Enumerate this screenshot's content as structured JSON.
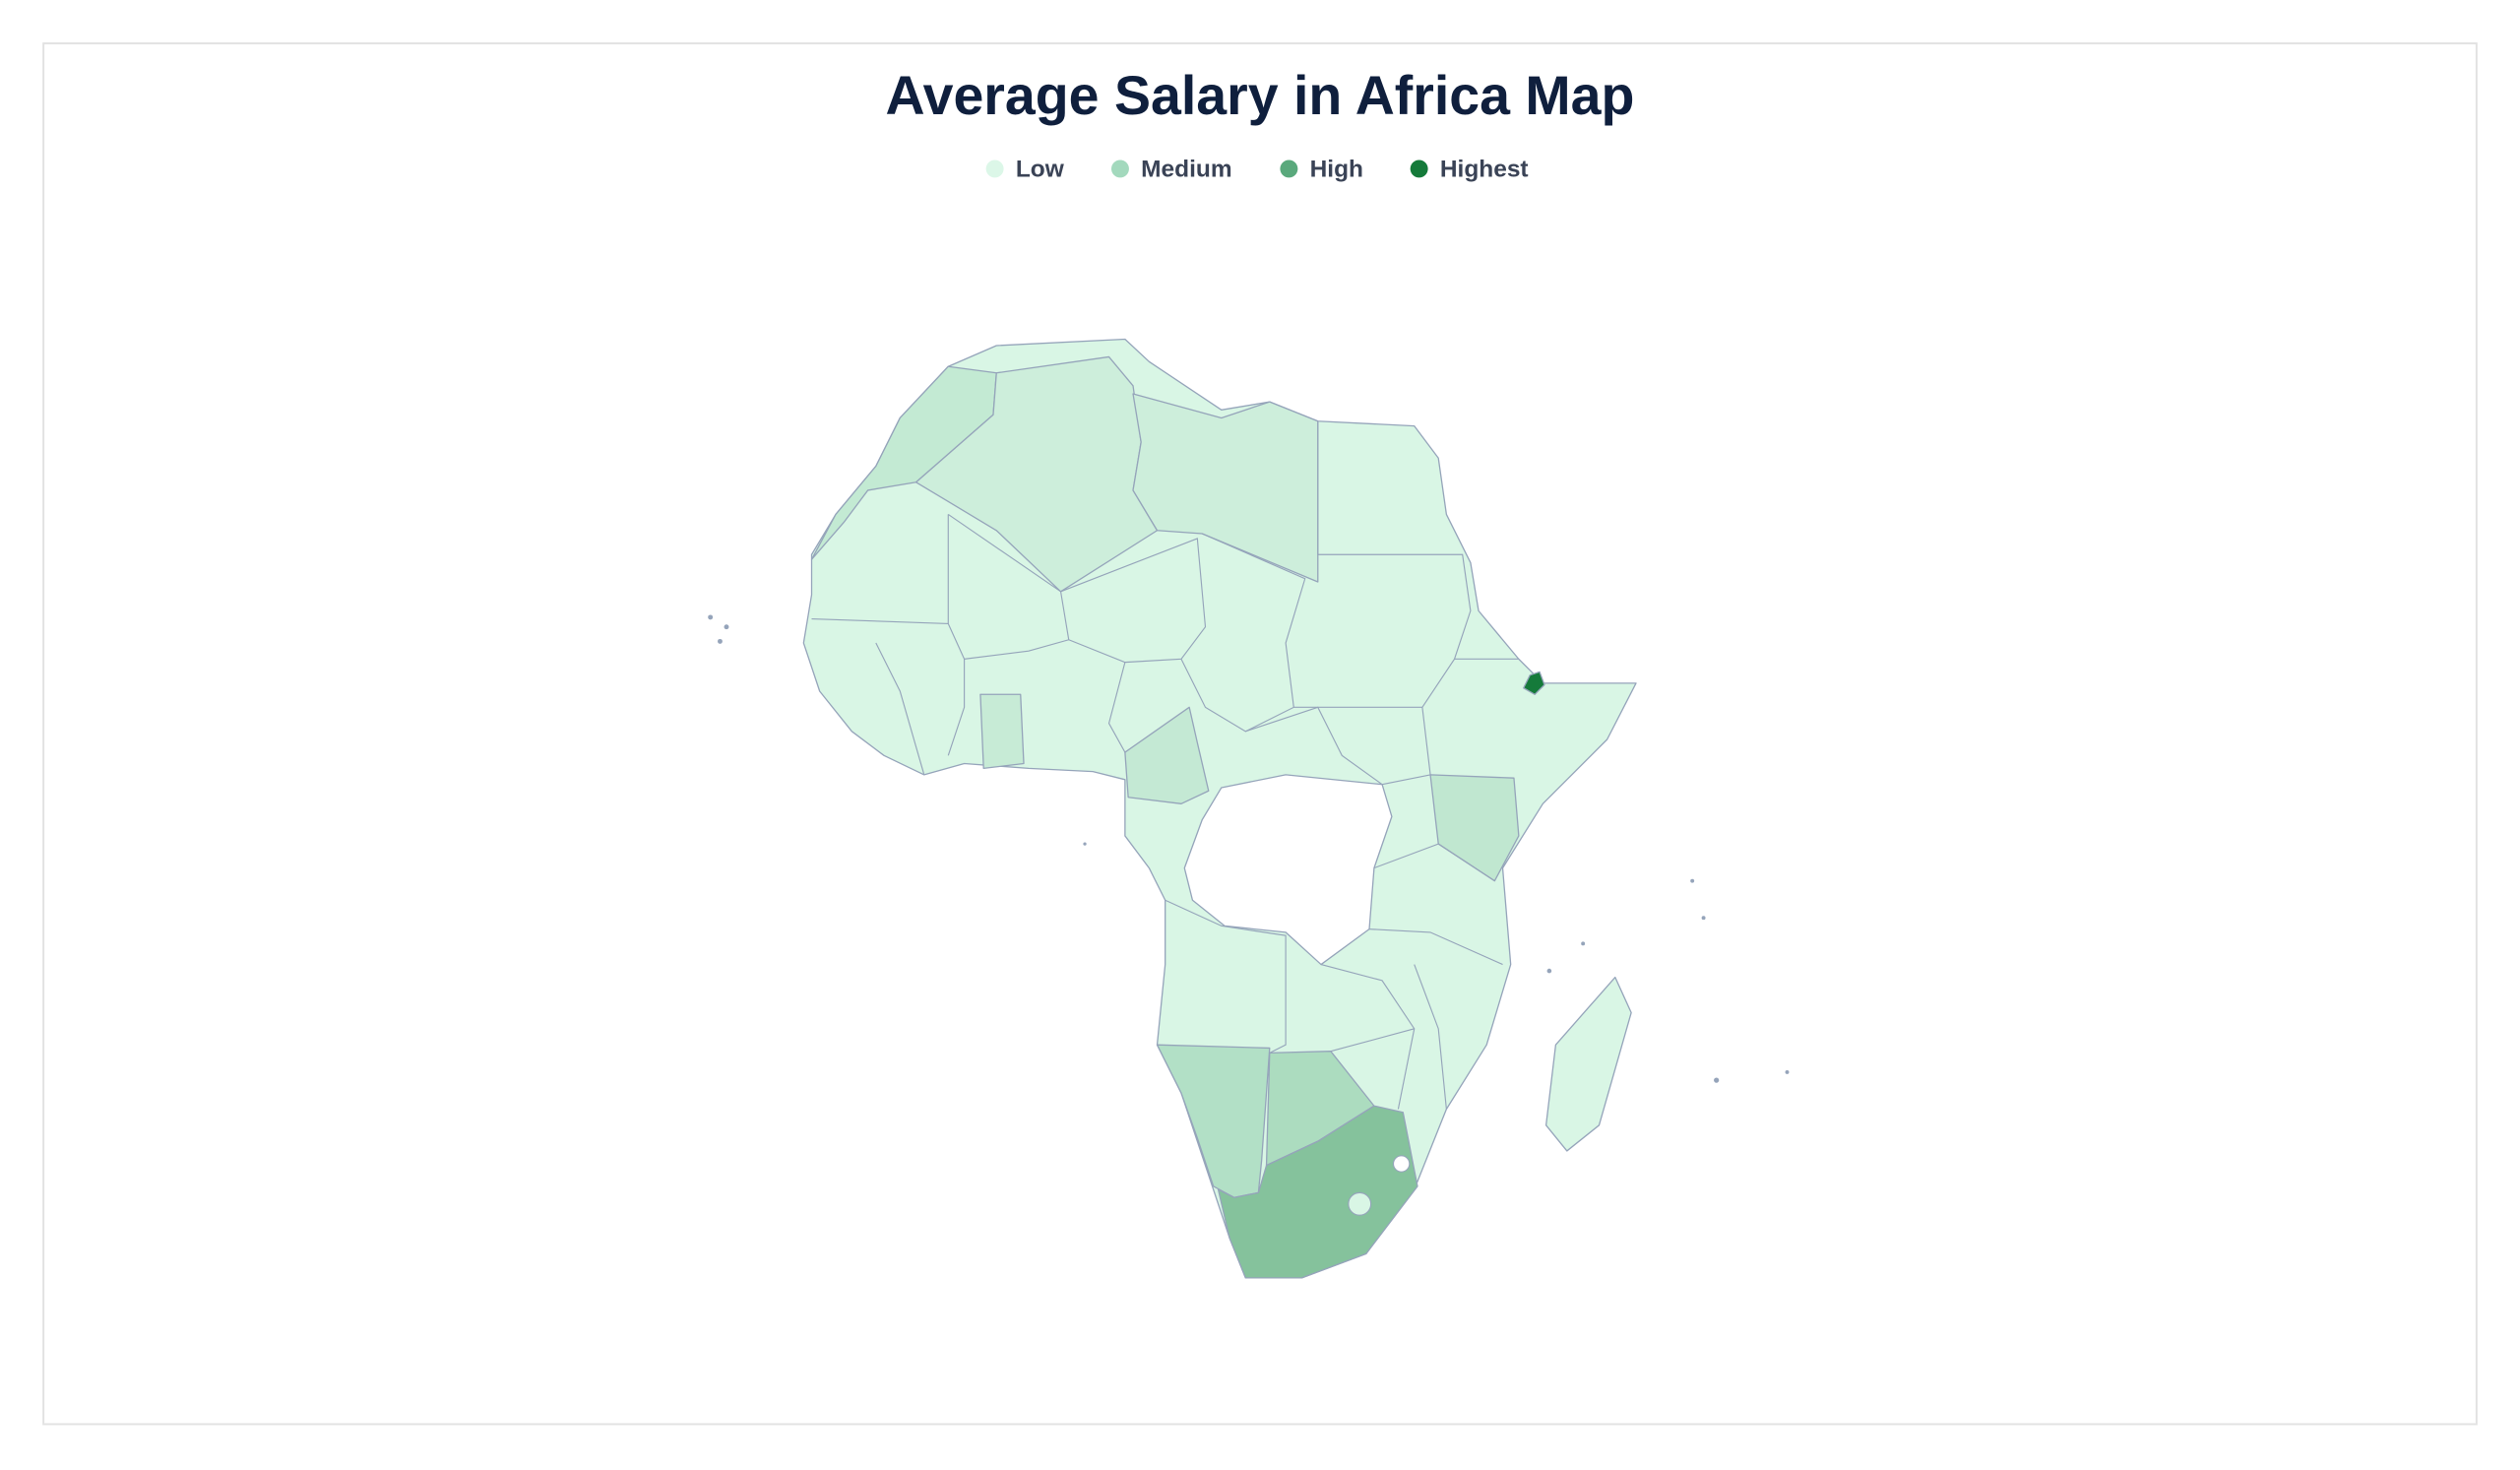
{
  "title": "Average Salary in Africa Map",
  "legend": [
    {
      "label": "Low",
      "color": "#dcf7e8"
    },
    {
      "label": "Medium",
      "color": "#a3d9bd"
    },
    {
      "label": "High",
      "color": "#5aa97c"
    },
    {
      "label": "Highest",
      "color": "#157a3a"
    }
  ]
}
